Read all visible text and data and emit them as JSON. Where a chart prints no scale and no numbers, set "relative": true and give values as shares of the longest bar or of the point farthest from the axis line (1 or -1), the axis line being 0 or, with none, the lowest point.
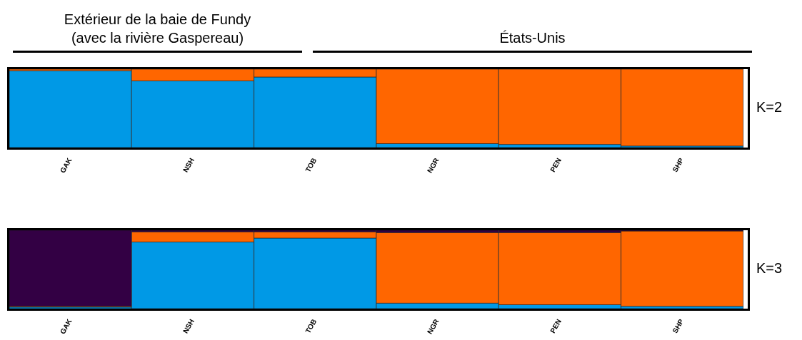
{
  "chart_data": [
    {
      "type": "bar",
      "stacked": true,
      "relative": true,
      "title": "K=2",
      "annotations": [
        "Extérieur de la baie de Fundy\n(avec la rivière Gaspereau)",
        "États-Unis"
      ],
      "categories": [
        "GAK",
        "NSH",
        "TOB",
        "NGR",
        "PEN",
        "SHP"
      ],
      "series": [
        {
          "color": "#0099e6",
          "values": [
            0.98,
            0.85,
            0.9,
            0.05,
            0.04,
            0.02
          ]
        },
        {
          "color": "#ff6600",
          "values": [
            0.02,
            0.15,
            0.1,
            0.95,
            0.96,
            0.98
          ]
        }
      ]
    },
    {
      "type": "bar",
      "stacked": true,
      "relative": true,
      "title": "K=3",
      "categories": [
        "GAK",
        "NSH",
        "TOB",
        "NGR",
        "PEN",
        "SHP"
      ],
      "series": [
        {
          "color": "#0099e6",
          "values": [
            0.02,
            0.85,
            0.9,
            0.07,
            0.05,
            0.03
          ]
        },
        {
          "color": "#ff6600",
          "values": [
            0.01,
            0.13,
            0.08,
            0.9,
            0.92,
            0.96
          ]
        },
        {
          "color": "#330044",
          "values": [
            0.97,
            0.02,
            0.02,
            0.03,
            0.03,
            0.01
          ]
        }
      ]
    }
  ]
}
